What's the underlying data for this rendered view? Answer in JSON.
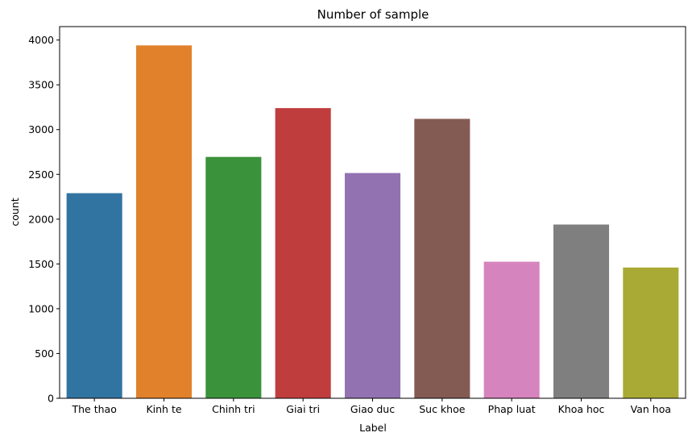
{
  "chart_data": {
    "type": "bar",
    "title": "Number of sample",
    "xlabel": "Label",
    "ylabel": "count",
    "categories": [
      "The thao",
      "Kinh te",
      "Chinh tri",
      "Giai tri",
      "Giao duc",
      "Suc khoe",
      "Phap luat",
      "Khoa hoc",
      "Van hoa"
    ],
    "values": [
      2290,
      3940,
      2695,
      3240,
      2515,
      3120,
      1525,
      1940,
      1460
    ],
    "colors": [
      "#3274a1",
      "#e1812c",
      "#3a923a",
      "#c03d3e",
      "#9372b2",
      "#845b53",
      "#d684bd",
      "#7f7f7f",
      "#a9aa35"
    ],
    "ylim": [
      0,
      4150
    ],
    "yticks": [
      0,
      500,
      1000,
      1500,
      2000,
      2500,
      3000,
      3500,
      4000
    ],
    "grid": false,
    "legend": "none"
  }
}
